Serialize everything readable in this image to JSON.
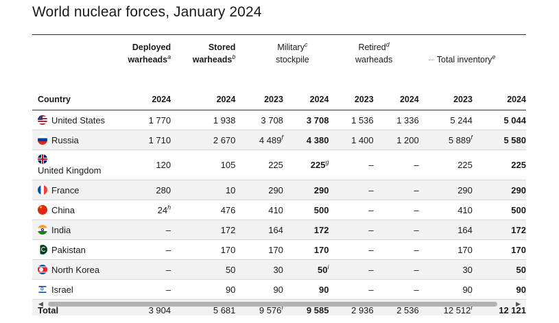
{
  "title": "World nuclear forces, January 2024",
  "headers": {
    "country": "Country",
    "deployed": "Deployed",
    "deployed2": "warheads",
    "deployed_note": "a",
    "stored": "Stored",
    "stored2": "warheads",
    "stored_note": "b",
    "military": "Military",
    "military_note": "c",
    "military2": "stockpile",
    "retired": "Retired",
    "retired_note": "d",
    "retired2": "warheads",
    "inventory": "Total inventory",
    "inventory_note": "e",
    "years": [
      "2024",
      "2024",
      "2023",
      "2024",
      "2023",
      "2024",
      "2023",
      "2024"
    ]
  },
  "rows": [
    {
      "country": "United States",
      "flag": "us-flag-icon",
      "deployed": "1 770",
      "stored": "1 938",
      "mil2023": "3 708",
      "mil2024": "3 708",
      "ret2023": "1 536",
      "ret2024": "1 336",
      "inv2023": "5 244",
      "inv2024": "5 044"
    },
    {
      "country": "Russia",
      "flag": "russia-flag-icon",
      "deployed": "1 710",
      "stored": "2 670",
      "mil2023": "4 489",
      "mil2023_note": "f",
      "mil2024": "4 380",
      "ret2023": "1 400",
      "ret2024": "1 200",
      "inv2023": "5 889",
      "inv2023_note": "f",
      "inv2024": "5 580"
    },
    {
      "country": "United Kingdom",
      "flag": "uk-flag-icon",
      "deployed": "120",
      "stored": "105",
      "mil2023": "225",
      "mil2024": "225",
      "mil2024_note": "g",
      "ret2023": "–",
      "ret2024": "–",
      "inv2023": "225",
      "inv2024": "225"
    },
    {
      "country": "France",
      "flag": "france-flag-icon",
      "deployed": "280",
      "stored": "10",
      "mil2023": "290",
      "mil2024": "290",
      "ret2023": "–",
      "ret2024": "–",
      "inv2023": "290",
      "inv2024": "290"
    },
    {
      "country": "China",
      "flag": "china-flag-icon",
      "deployed": "24",
      "deployed_note": "h",
      "stored": "476",
      "mil2023": "410",
      "mil2024": "500",
      "ret2023": "–",
      "ret2024": "–",
      "inv2023": "410",
      "inv2024": "500"
    },
    {
      "country": "India",
      "flag": "india-flag-icon",
      "deployed": "–",
      "stored": "172",
      "mil2023": "164",
      "mil2024": "172",
      "ret2023": "–",
      "ret2024": "–",
      "inv2023": "164",
      "inv2024": "172"
    },
    {
      "country": "Pakistan",
      "flag": "pakistan-flag-icon",
      "deployed": "–",
      "stored": "170",
      "mil2023": "170",
      "mil2024": "170",
      "ret2023": "–",
      "ret2024": "–",
      "inv2023": "170",
      "inv2024": "170"
    },
    {
      "country": "North Korea",
      "flag": "north-korea-flag-icon",
      "deployed": "–",
      "stored": "50",
      "mil2023": "30",
      "mil2024": "50",
      "mil2024_note": "i",
      "ret2023": "–",
      "ret2024": "–",
      "inv2023": "30",
      "inv2024": "50"
    },
    {
      "country": "Israel",
      "flag": "israel-flag-icon",
      "deployed": "–",
      "stored": "90",
      "mil2023": "90",
      "mil2024": "90",
      "ret2023": "–",
      "ret2024": "–",
      "inv2023": "90",
      "inv2024": "90"
    }
  ],
  "total": {
    "label": "Total",
    "deployed": "3 904",
    "stored": "5 681",
    "mil2023": "9 576",
    "mil2023_note": "f",
    "mil2024": "9 585",
    "ret2023": "2 936",
    "ret2024": "2 536",
    "inv2023": "12 512",
    "inv2023_note": "f",
    "inv2024": "12 121"
  },
  "colors": {
    "rule": "#333333",
    "zebra": "#f2f2f2",
    "scroll_thumb": "#b3b3b3"
  }
}
